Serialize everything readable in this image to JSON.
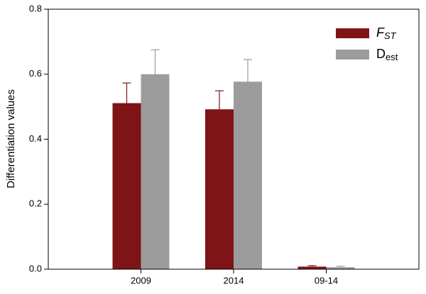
{
  "chart_data": {
    "type": "bar",
    "categories": [
      "2009",
      "2014",
      "09-14"
    ],
    "y_label": "Differentiation values",
    "series": [
      {
        "name": "FST",
        "color": "#7f1416",
        "values": [
          0.511,
          0.492,
          0.008
        ],
        "errors": [
          0.062,
          0.057,
          0.003
        ]
      },
      {
        "name": "Dest",
        "color": "#9c9c9c",
        "values": [
          0.6,
          0.577,
          0.006
        ],
        "errors": [
          0.075,
          0.068,
          0.003
        ]
      }
    ],
    "ylim": [
      0,
      0.8
    ],
    "yticks": [
      {
        "value": 0,
        "label": "0.0"
      },
      0.2,
      0.4,
      0.6,
      0.8
    ],
    "legend": "top-right"
  }
}
